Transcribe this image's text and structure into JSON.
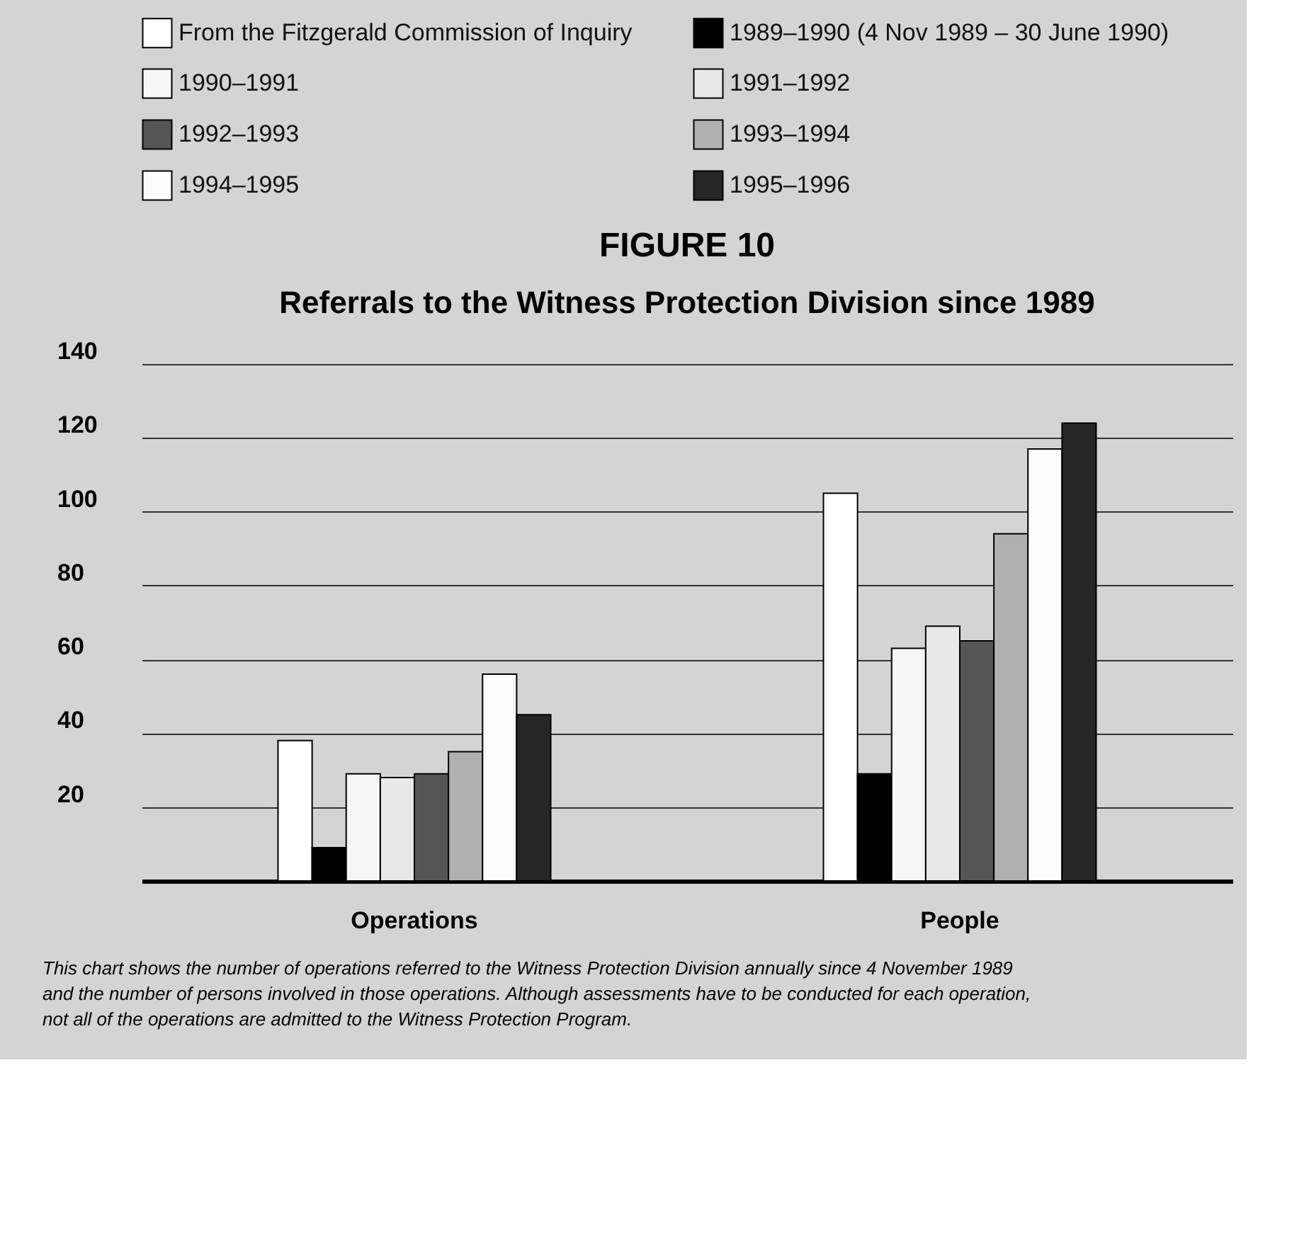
{
  "chart_data": {
    "type": "bar",
    "title": "FIGURE 10",
    "subtitle": "Referrals to the Witness Protection Division since 1989",
    "categories": [
      "Operations",
      "People"
    ],
    "series": [
      {
        "name": "From the Fitzgerald Commission of Inquiry",
        "color": "#ffffff",
        "values": [
          38,
          105
        ]
      },
      {
        "name": "1989–1990 (4 Nov 1989 – 30 June 1990)",
        "color": "#000000",
        "values": [
          9,
          29
        ]
      },
      {
        "name": "1990–1991",
        "color": "#f7f7f7",
        "values": [
          29,
          63
        ]
      },
      {
        "name": "1991–1992",
        "color": "#e8e8e8",
        "values": [
          28,
          69
        ]
      },
      {
        "name": "1992–1993",
        "color": "#555555",
        "values": [
          29,
          65
        ]
      },
      {
        "name": "1993–1994",
        "color": "#b0b0b0",
        "values": [
          35,
          94
        ]
      },
      {
        "name": "1994–1995",
        "color": "#fcfcfc",
        "values": [
          56,
          117
        ]
      },
      {
        "name": "1995–1996",
        "color": "#262626",
        "values": [
          45,
          124
        ]
      }
    ],
    "ylim": [
      0,
      140
    ],
    "yticks": [
      20,
      40,
      60,
      80,
      100,
      120,
      140
    ],
    "grid": "y",
    "legend": "top",
    "annotations": [
      "This chart shows the number of operations referred to the Witness Protection Division annually since 4 November 1989 and the number of persons involved in those operations.  Although assessments have to be conducted for each operation, not all of the operations are admitted to the Witness Protection Program."
    ]
  }
}
